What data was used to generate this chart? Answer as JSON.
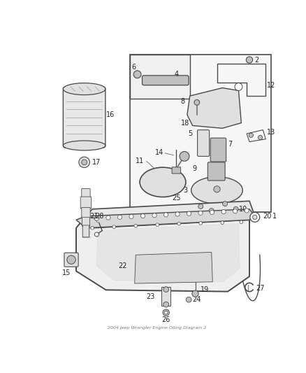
{
  "bg_color": "#ffffff",
  "line_color": "#4a4a4a",
  "figsize": [
    4.38,
    5.33
  ],
  "dpi": 100,
  "footer": "2004 Jeep Wrangler Engine Oiling Diagram 2"
}
